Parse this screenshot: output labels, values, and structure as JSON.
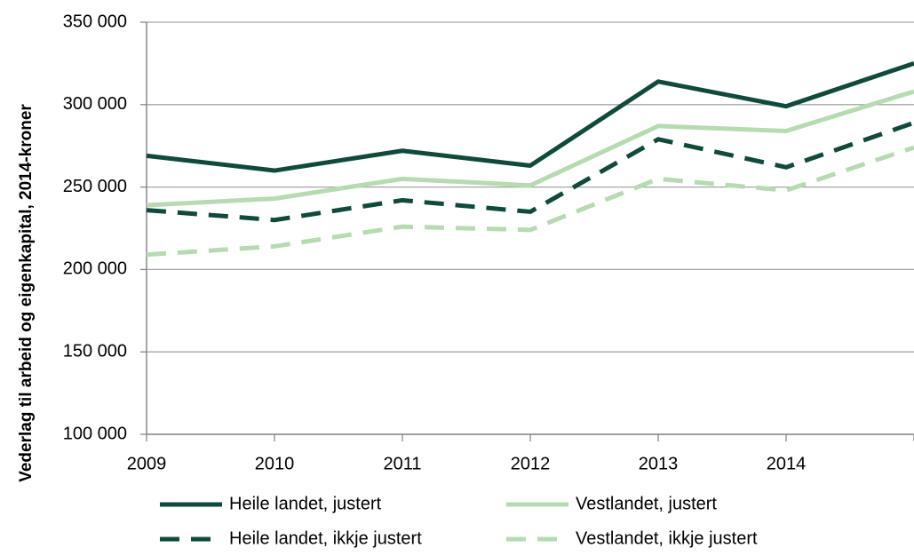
{
  "chart_data": {
    "type": "line",
    "y_label": "Vederlag til arbeid og eigenkapital, 2014-kroner",
    "categories": [
      "2009",
      "2010",
      "2011",
      "2012",
      "2013",
      "2014",
      null
    ],
    "series": [
      {
        "name": "Heile landet, justert",
        "color": "#0f4a3b",
        "dash": false,
        "values": [
          269000,
          260000,
          272000,
          263000,
          314000,
          299000,
          325000
        ]
      },
      {
        "name": "Vestlandet, justert",
        "color": "#b6dbb1",
        "dash": false,
        "values": [
          239000,
          243000,
          255000,
          251000,
          287000,
          284000,
          308000
        ]
      },
      {
        "name": "Heile landet, ikkje justert",
        "color": "#0f4a3b",
        "dash": true,
        "values": [
          236000,
          230000,
          242000,
          235000,
          279000,
          262000,
          289000
        ]
      },
      {
        "name": "Vestlandet, ikkje justert",
        "color": "#b6dbb1",
        "dash": true,
        "values": [
          209000,
          214000,
          226000,
          224000,
          255000,
          248000,
          274000
        ]
      }
    ],
    "ylim": [
      100000,
      350000
    ],
    "yticks": [
      {
        "value": 100000,
        "label": "100 000"
      },
      {
        "value": 150000,
        "label": "150 000"
      },
      {
        "value": 200000,
        "label": "200 000"
      },
      {
        "value": 250000,
        "label": "250 000"
      },
      {
        "value": 300000,
        "label": "300 000"
      },
      {
        "value": 350000,
        "label": "350 000"
      }
    ],
    "grid": true,
    "legend": "bottom"
  }
}
